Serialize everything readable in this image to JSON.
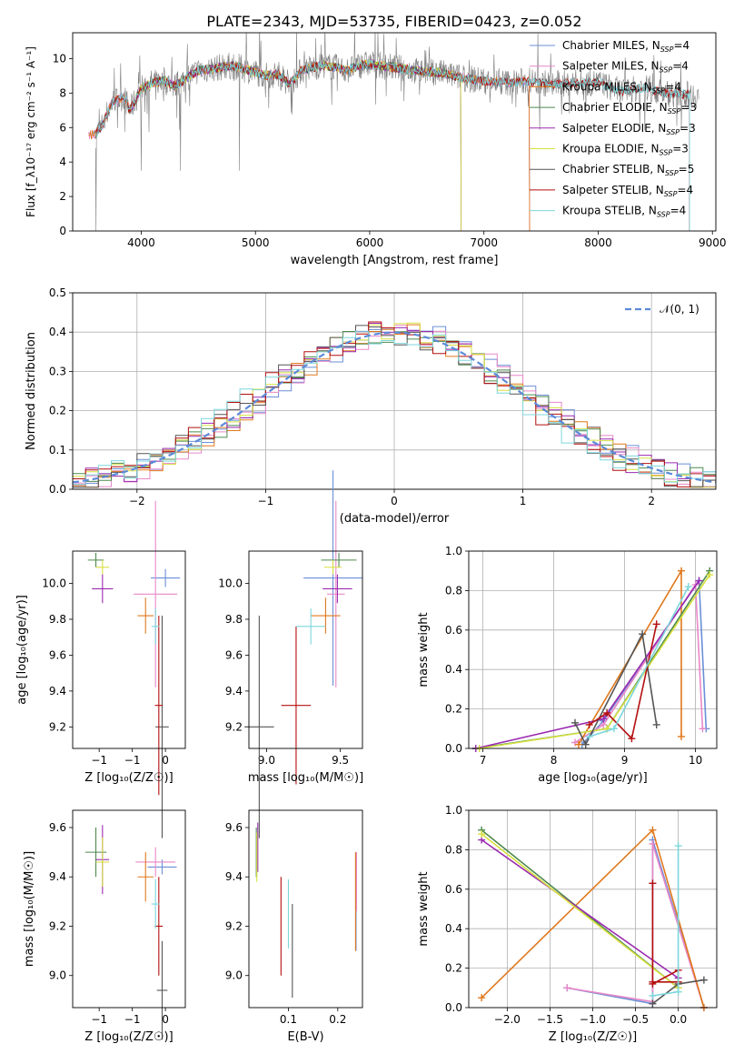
{
  "figure": {
    "title": "PLATE=2343, MJD=53735, FIBERID=0423, z=0.052"
  },
  "colors": {
    "Chabrier MILES": "#6a8fd8",
    "Salpeter MILES": "#e888c8",
    "Kroupa MILES": "#e0781c",
    "Chabrier ELODIE": "#4e8a4e",
    "Salpeter ELODIE": "#9a2ab0",
    "Kroupa ELODIE": "#d7e040",
    "Chabrier STELIB": "#555555",
    "Salpeter STELIB": "#b40f0f",
    "Kroupa STELIB": "#7cd7dc"
  },
  "chart_data": [
    {
      "id": "spectrum",
      "type": "line",
      "xlabel": "wavelength [Angstrom, rest frame]",
      "ylabel": "Flux [f_λ10⁻¹⁷ erg cm⁻² s⁻¹ A⁻¹]",
      "xlim": [
        3400,
        9030
      ],
      "ylim": [
        0,
        11.5
      ],
      "xticks": [
        4000,
        5000,
        6000,
        7000,
        8000,
        9000
      ],
      "yticks": [
        0,
        2,
        4,
        6,
        8,
        10
      ],
      "legend_position": "top-right",
      "legend": [
        {
          "model": "Chabrier MILES",
          "nssp": "4"
        },
        {
          "model": "Salpeter MILES",
          "nssp": "4"
        },
        {
          "model": "Kroupa MILES",
          "nssp": "4"
        },
        {
          "model": "Chabrier ELODIE",
          "nssp": "3"
        },
        {
          "model": "Salpeter ELODIE",
          "nssp": "3"
        },
        {
          "model": "Kroupa ELODIE",
          "nssp": "3"
        },
        {
          "model": "Chabrier STELIB",
          "nssp": "5"
        },
        {
          "model": "Salpeter STELIB",
          "nssp": "4"
        },
        {
          "model": "Kroupa STELIB",
          "nssp": "4"
        }
      ],
      "data_series": {
        "x": [
          3600,
          3650,
          3700,
          3750,
          3800,
          3850,
          3900,
          3950,
          4000,
          4100,
          4200,
          4300,
          4400,
          4500,
          4600,
          4700,
          4800,
          4900,
          5000,
          5100,
          5200,
          5300,
          5400,
          5500,
          5600,
          5700,
          5800,
          5900,
          6000,
          6200,
          6400,
          6600,
          6800,
          7000,
          7200,
          7400,
          7600,
          7800,
          8000,
          8200,
          8400,
          8600,
          8800,
          9000
        ],
        "y": [
          5.6,
          6.0,
          6.8,
          7.5,
          7.6,
          7.8,
          7.0,
          7.6,
          8.3,
          8.6,
          8.7,
          8.4,
          8.9,
          9.3,
          9.4,
          9.5,
          9.6,
          9.4,
          9.2,
          9.0,
          9.1,
          8.5,
          9.3,
          9.5,
          9.6,
          9.5,
          9.3,
          9.6,
          9.7,
          9.5,
          9.3,
          9.2,
          8.9,
          8.7,
          8.6,
          8.7,
          8.5,
          8.6,
          8.6,
          8.1,
          8.3,
          8.0,
          7.9,
          7.8
        ]
      },
      "model_domains": [
        {
          "model": "Chabrier MILES",
          "x": [
            3540,
            7400
          ]
        },
        {
          "model": "Salpeter MILES",
          "x": [
            3540,
            7400
          ]
        },
        {
          "model": "Kroupa MILES",
          "x": [
            3540,
            7400
          ]
        },
        {
          "model": "Chabrier ELODIE",
          "x": [
            3900,
            6800
          ]
        },
        {
          "model": "Salpeter ELODIE",
          "x": [
            3900,
            6800
          ]
        },
        {
          "model": "Kroupa ELODIE",
          "x": [
            3900,
            6800
          ]
        },
        {
          "model": "Chabrier STELIB",
          "x": [
            3600,
            8800
          ]
        },
        {
          "model": "Salpeter STELIB",
          "x": [
            3600,
            8800
          ]
        },
        {
          "model": "Kroupa STELIB",
          "x": [
            3600,
            8800
          ]
        }
      ]
    },
    {
      "id": "residuals",
      "type": "histogram",
      "xlabel": "(data-model)/error",
      "ylabel": "Normed distribution",
      "xlim": [
        -2.5,
        2.5
      ],
      "ylim": [
        0,
        0.5
      ],
      "xticks": [
        -2,
        -1,
        0,
        1,
        2
      ],
      "yticks": [
        0.0,
        0.1,
        0.2,
        0.3,
        0.4,
        0.5
      ],
      "grid": true,
      "legend_position": "top-right",
      "reference_curve": {
        "label": "𝒩(0, 1)",
        "mean": 0,
        "sd": 1,
        "style": "dashed"
      },
      "bin_width": 0.1
    },
    {
      "id": "age_vs_Z",
      "type": "errorbar",
      "xlabel": "Z [log₁₀(Z/Z☉)]",
      "ylabel": "age  [log₁₀(age/yr)]",
      "xlim": [
        -1.4,
        0.3
      ],
      "ylim": [
        9.08,
        10.18
      ],
      "xticks": [
        -1,
        -0.5,
        0
      ],
      "yticks": [
        9.2,
        9.4,
        9.6,
        9.8,
        10.0
      ],
      "points": [
        {
          "model": "Chabrier MILES",
          "x": 0.0,
          "xerr": 0.22,
          "y": 10.03,
          "yerr": 0.05
        },
        {
          "model": "Salpeter MILES",
          "x": -0.15,
          "xerr": 0.33,
          "y": 9.94,
          "yerr": 0.52
        },
        {
          "model": "Kroupa MILES",
          "x": -0.3,
          "xerr": 0.12,
          "y": 9.82,
          "yerr": 0.1
        },
        {
          "model": "Chabrier ELODIE",
          "x": -1.05,
          "xerr": 0.12,
          "y": 10.13,
          "yerr": 0.04
        },
        {
          "model": "Salpeter ELODIE",
          "x": -0.95,
          "xerr": 0.16,
          "y": 9.97,
          "yerr": 0.08
        },
        {
          "model": "Kroupa ELODIE",
          "x": -0.95,
          "xerr": 0.1,
          "y": 10.09,
          "yerr": 0.04
        },
        {
          "model": "Chabrier STELIB",
          "x": -0.05,
          "xerr": 0.1,
          "y": 9.2,
          "yerr": 0.62
        },
        {
          "model": "Salpeter STELIB",
          "x": -0.1,
          "xerr": 0.06,
          "y": 9.32,
          "yerr": 0.5
        },
        {
          "model": "Kroupa STELIB",
          "x": -0.15,
          "xerr": 0.06,
          "y": 9.76,
          "yerr": 0.1
        }
      ]
    },
    {
      "id": "age_vs_mass",
      "type": "errorbar",
      "xlabel": "mass [log₁₀(M/M☉)]",
      "xlim": [
        8.88,
        9.65
      ],
      "ylim": [
        9.08,
        10.18
      ],
      "xticks": [
        9.0,
        9.5
      ],
      "yticks": [
        9.2,
        9.4,
        9.6,
        9.8,
        10.0
      ],
      "points": [
        {
          "model": "Chabrier MILES",
          "x": 9.45,
          "xerr": 0.2,
          "y": 10.03,
          "yerr": 0.6
        },
        {
          "model": "Salpeter MILES",
          "x": 9.47,
          "xerr": 0.06,
          "y": 9.94,
          "yerr": 0.52
        },
        {
          "model": "Kroupa MILES",
          "x": 9.4,
          "xerr": 0.1,
          "y": 9.82,
          "yerr": 0.1
        },
        {
          "model": "Chabrier ELODIE",
          "x": 9.49,
          "xerr": 0.12,
          "y": 10.13,
          "yerr": 0.04
        },
        {
          "model": "Salpeter ELODIE",
          "x": 9.48,
          "xerr": 0.1,
          "y": 9.97,
          "yerr": 0.08
        },
        {
          "model": "Kroupa ELODIE",
          "x": 9.45,
          "xerr": 0.06,
          "y": 10.09,
          "yerr": 0.04
        },
        {
          "model": "Chabrier STELIB",
          "x": 8.95,
          "xerr": 0.1,
          "y": 9.2,
          "yerr": 0.62
        },
        {
          "model": "Salpeter STELIB",
          "x": 9.2,
          "xerr": 0.1,
          "y": 9.32,
          "yerr": 0.44
        },
        {
          "model": "Kroupa STELIB",
          "x": 9.3,
          "xerr": 0.1,
          "y": 9.76,
          "yerr": 0.1
        }
      ]
    },
    {
      "id": "massweight_vs_age",
      "type": "line",
      "xlabel": "age  [log₁₀(age/yr)]",
      "ylabel": "mass weight",
      "xlim": [
        6.8,
        10.3
      ],
      "ylim": [
        0,
        1.0
      ],
      "xticks": [
        7,
        8,
        9,
        10
      ],
      "yticks": [
        0.0,
        0.2,
        0.4,
        0.6,
        0.8,
        1.0
      ],
      "grid": true,
      "series": [
        {
          "model": "Chabrier MILES",
          "points": [
            [
              8.4,
              0.02
            ],
            [
              8.7,
              0.14
            ],
            [
              10.05,
              0.85
            ],
            [
              10.15,
              0.1
            ]
          ]
        },
        {
          "model": "Salpeter MILES",
          "points": [
            [
              8.3,
              0.03
            ],
            [
              8.7,
              0.12
            ],
            [
              10.0,
              0.83
            ],
            [
              10.1,
              0.1
            ]
          ]
        },
        {
          "model": "Kroupa MILES",
          "points": [
            [
              8.35,
              0.02
            ],
            [
              9.8,
              0.9
            ],
            [
              9.8,
              0.06
            ]
          ]
        },
        {
          "model": "Chabrier ELODIE",
          "points": [
            [
              6.9,
              0.0
            ],
            [
              8.75,
              0.1
            ],
            [
              10.2,
              0.9
            ]
          ]
        },
        {
          "model": "Salpeter ELODIE",
          "points": [
            [
              6.9,
              0.0
            ],
            [
              8.7,
              0.15
            ],
            [
              10.05,
              0.85
            ]
          ]
        },
        {
          "model": "Kroupa ELODIE",
          "points": [
            [
              6.95,
              0.0
            ],
            [
              8.75,
              0.1
            ],
            [
              10.2,
              0.88
            ]
          ]
        },
        {
          "model": "Chabrier STELIB",
          "points": [
            [
              8.3,
              0.13
            ],
            [
              8.45,
              0.02
            ],
            [
              9.25,
              0.58
            ],
            [
              9.45,
              0.12
            ]
          ]
        },
        {
          "model": "Salpeter STELIB",
          "points": [
            [
              8.5,
              0.12
            ],
            [
              8.75,
              0.18
            ],
            [
              9.1,
              0.05
            ],
            [
              9.45,
              0.63
            ]
          ]
        },
        {
          "model": "Kroupa STELIB",
          "points": [
            [
              8.5,
              0.06
            ],
            [
              8.85,
              0.1
            ],
            [
              9.9,
              0.82
            ]
          ]
        }
      ]
    },
    {
      "id": "mass_vs_Z",
      "type": "errorbar",
      "xlabel": "Z [log₁₀(Z/Z☉)]",
      "ylabel": "mass [log₁₀(M/M☉)]",
      "xlim": [
        -1.4,
        0.3
      ],
      "ylim": [
        8.87,
        9.67
      ],
      "xticks": [
        -1,
        -0.5,
        0
      ],
      "yticks": [
        9.0,
        9.2,
        9.4,
        9.6
      ],
      "points": [
        {
          "model": "Chabrier MILES",
          "x": -0.05,
          "xerr": 0.22,
          "y": 9.44,
          "yerr": 0.03
        },
        {
          "model": "Salpeter MILES",
          "x": -0.15,
          "xerr": 0.3,
          "y": 9.46,
          "yerr": 0.06
        },
        {
          "model": "Kroupa MILES",
          "x": -0.3,
          "xerr": 0.12,
          "y": 9.4,
          "yerr": 0.1
        },
        {
          "model": "Chabrier ELODIE",
          "x": -1.05,
          "xerr": 0.16,
          "y": 9.5,
          "yerr": 0.1
        },
        {
          "model": "Salpeter ELODIE",
          "x": -0.95,
          "xerr": 0.1,
          "y": 9.47,
          "yerr": 0.14
        },
        {
          "model": "Kroupa ELODIE",
          "x": -0.95,
          "xerr": 0.1,
          "y": 9.46,
          "yerr": 0.1
        },
        {
          "model": "Chabrier STELIB",
          "x": -0.05,
          "xerr": 0.08,
          "y": 8.94,
          "yerr": 0.2
        },
        {
          "model": "Salpeter STELIB",
          "x": -0.1,
          "xerr": 0.06,
          "y": 9.2,
          "yerr": 0.2
        },
        {
          "model": "Kroupa STELIB",
          "x": -0.15,
          "xerr": 0.06,
          "y": 9.29,
          "yerr": 0.1
        }
      ]
    },
    {
      "id": "mass_vs_EBV",
      "type": "errorbar",
      "xlabel": "E(B-V)",
      "xlim": [
        0.02,
        0.25
      ],
      "ylim": [
        8.87,
        9.67
      ],
      "xticks": [
        0.1,
        0.2
      ],
      "yticks": [
        9.0,
        9.2,
        9.4,
        9.6
      ],
      "points": [
        {
          "model": "Chabrier MILES",
          "x": 0.237,
          "xerr": 0,
          "y": 9.3,
          "yerr": 0.2
        },
        {
          "model": "Salpeter MILES",
          "x": 0.238,
          "xerr": 0,
          "y": 9.38,
          "yerr": 0.12
        },
        {
          "model": "Kroupa MILES",
          "x": 0.236,
          "xerr": 0,
          "y": 9.3,
          "yerr": 0.2
        },
        {
          "model": "Chabrier ELODIE",
          "x": 0.035,
          "xerr": 0,
          "y": 9.5,
          "yerr": 0.1
        },
        {
          "model": "Salpeter ELODIE",
          "x": 0.038,
          "xerr": 0,
          "y": 9.52,
          "yerr": 0.1
        },
        {
          "model": "Kroupa ELODIE",
          "x": 0.036,
          "xerr": 0,
          "y": 9.48,
          "yerr": 0.1
        },
        {
          "model": "Chabrier STELIB",
          "x": 0.108,
          "xerr": 0,
          "y": 9.1,
          "yerr": 0.19
        },
        {
          "model": "Salpeter STELIB",
          "x": 0.085,
          "xerr": 0,
          "y": 9.2,
          "yerr": 0.2
        },
        {
          "model": "Kroupa STELIB",
          "x": 0.1,
          "xerr": 0,
          "y": 9.25,
          "yerr": 0.14
        }
      ]
    },
    {
      "id": "massweight_vs_Z",
      "type": "line",
      "xlabel": "Z [log₁₀(Z/Z☉)]",
      "ylabel": "mass weight",
      "xlim": [
        -2.45,
        0.45
      ],
      "ylim": [
        0,
        1.0
      ],
      "xticks": [
        -2.0,
        -1.5,
        -1.0,
        -0.5,
        0.0
      ],
      "yticks": [
        0.0,
        0.2,
        0.4,
        0.6,
        0.8,
        1.0
      ],
      "grid": true,
      "series": [
        {
          "model": "Chabrier MILES",
          "points": [
            [
              -1.3,
              0.1
            ],
            [
              -0.3,
              0.02
            ],
            [
              -0.3,
              0.85
            ],
            [
              0.3,
              0.0
            ]
          ]
        },
        {
          "model": "Salpeter MILES",
          "points": [
            [
              -1.3,
              0.1
            ],
            [
              -0.3,
              0.03
            ],
            [
              -0.3,
              0.83
            ],
            [
              0.3,
              0.0
            ]
          ]
        },
        {
          "model": "Kroupa MILES",
          "points": [
            [
              -2.3,
              0.05
            ],
            [
              -0.3,
              0.9
            ],
            [
              0.3,
              0.0
            ]
          ]
        },
        {
          "model": "Chabrier ELODIE",
          "points": [
            [
              -2.3,
              0.9
            ],
            [
              0.0,
              0.1
            ]
          ]
        },
        {
          "model": "Salpeter ELODIE",
          "points": [
            [
              -2.3,
              0.85
            ],
            [
              0.0,
              0.15
            ]
          ]
        },
        {
          "model": "Kroupa ELODIE",
          "points": [
            [
              -2.3,
              0.88
            ],
            [
              0.0,
              0.1
            ]
          ]
        },
        {
          "model": "Chabrier STELIB",
          "points": [
            [
              -0.3,
              0.02
            ],
            [
              0.0,
              0.12
            ],
            [
              0.3,
              0.14
            ]
          ]
        },
        {
          "model": "Salpeter STELIB",
          "points": [
            [
              -0.3,
              0.63
            ],
            [
              -0.3,
              0.13
            ],
            [
              0.0,
              0.13
            ],
            [
              0.0,
              0.19
            ],
            [
              -0.3,
              0.12
            ]
          ]
        },
        {
          "model": "Kroupa STELIB",
          "points": [
            [
              -0.3,
              0.06
            ],
            [
              0.0,
              0.08
            ],
            [
              0.0,
              0.82
            ]
          ]
        }
      ]
    }
  ]
}
